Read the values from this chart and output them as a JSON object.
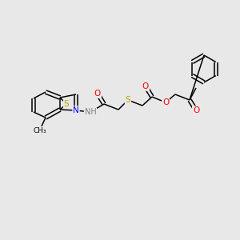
{
  "background_color": "#e8e8e8",
  "bond_color": "#000000",
  "atom_colors": {
    "N": "#0000ff",
    "O": "#ff0000",
    "S": "#b8a000",
    "NH": "#808080",
    "C": "#000000"
  },
  "figsize": [
    3.0,
    3.0
  ],
  "dpi": 100
}
